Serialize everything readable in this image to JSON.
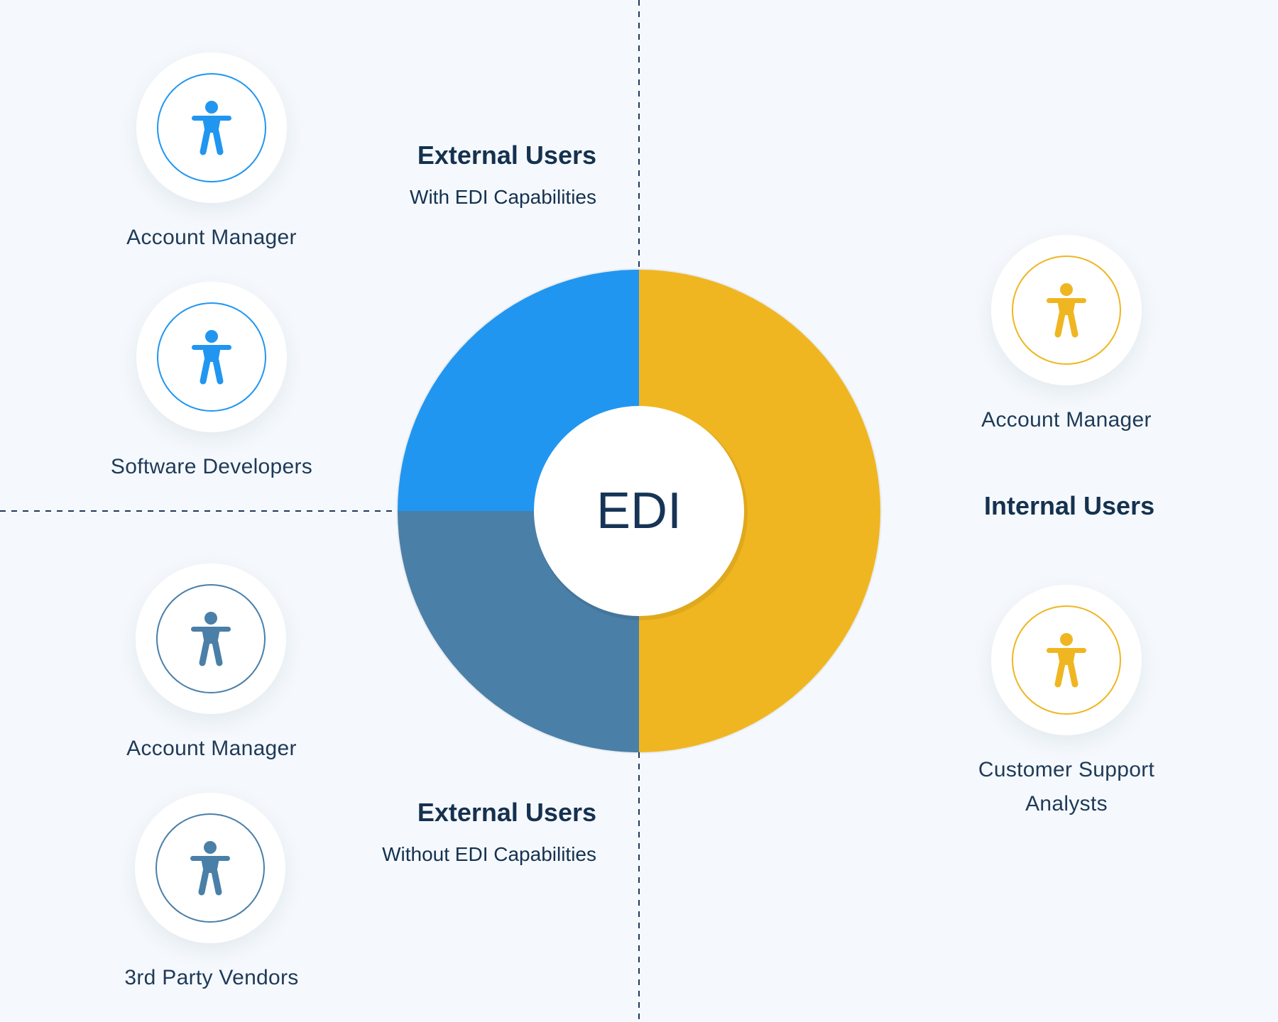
{
  "center": {
    "label": "EDI"
  },
  "groups": {
    "external_with": {
      "title": "External Users",
      "subtitle": "With EDI Capabilities",
      "color": "#2196f0",
      "members": [
        "Account Manager",
        "Software Developers"
      ],
      "member_icons": [
        "person-icon",
        "person-icon"
      ]
    },
    "external_without": {
      "title": "External Users",
      "subtitle": "Without EDI Capabilities",
      "color": "#4a7fa8",
      "members": [
        "Account Manager",
        "3rd Party Vendors"
      ],
      "member_icons": [
        "person-icon",
        "person-icon"
      ]
    },
    "internal": {
      "title": "Internal Users",
      "color": "#f0b621",
      "members": [
        "Account Manager",
        "Customer Support Analysts"
      ],
      "member_lines": [
        [
          "Account Manager"
        ],
        [
          "Customer Support",
          "Analysts"
        ]
      ],
      "member_icons": [
        "person-icon",
        "person-icon"
      ]
    }
  },
  "donut_segments": [
    {
      "group": "external_with",
      "share": 0.25
    },
    {
      "group": "external_without",
      "share": 0.25
    },
    {
      "group": "internal",
      "share": 0.5
    }
  ]
}
